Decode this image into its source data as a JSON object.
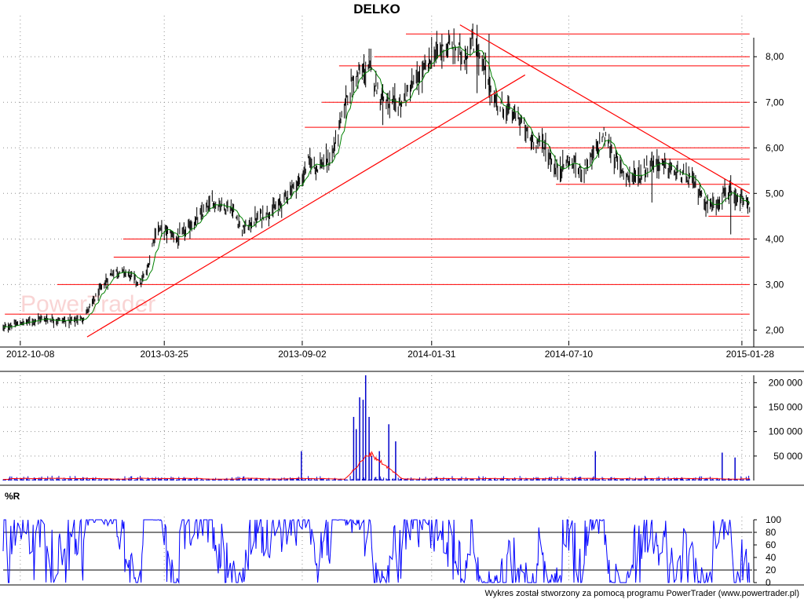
{
  "title": "DELKO",
  "footer": "Wykres został stworzony za pomocą programu PowerTrader (www.powertrader.pl)",
  "watermark": "PowerTrader",
  "colors": {
    "price_bars": "#000000",
    "moving_average": "#008000",
    "trend_lines": "#ff0000",
    "volume_bars": "#0000cc",
    "volume_average": "#ff0000",
    "williams_r": "#0000ff",
    "grid": "#909090"
  },
  "chart_data": [
    {
      "type": "line",
      "name": "price",
      "title": "DELKO",
      "x_ticks": [
        "2012-10-08",
        "2013-03-25",
        "2013-09-02",
        "2014-01-31",
        "2014-07-10",
        "2015-01-28"
      ],
      "y_ticks": [
        "2,00",
        "3,00",
        "4,00",
        "5,00",
        "6,00",
        "7,00",
        "8,00"
      ],
      "ylim": [
        1.8,
        8.9
      ],
      "x_range": [
        "2012-09-18",
        "2015-02-09"
      ],
      "grid": "dotted",
      "close_path": [
        [
          "2012-09-18",
          2.05
        ],
        [
          "2012-10-08",
          2.15
        ],
        [
          "2012-11-01",
          2.25
        ],
        [
          "2012-12-01",
          2.2
        ],
        [
          "2012-12-20",
          2.25
        ],
        [
          "2013-01-10",
          2.9
        ],
        [
          "2013-01-25",
          3.3
        ],
        [
          "2013-02-10",
          3.25
        ],
        [
          "2013-02-25",
          3.0
        ],
        [
          "2013-03-05",
          3.3
        ],
        [
          "2013-03-15",
          4.2
        ],
        [
          "2013-03-25",
          4.2
        ],
        [
          "2013-04-10",
          4.0
        ],
        [
          "2013-05-01",
          4.4
        ],
        [
          "2013-05-20",
          4.8
        ],
        [
          "2013-06-10",
          4.7
        ],
        [
          "2013-06-25",
          4.2
        ],
        [
          "2013-07-15",
          4.5
        ],
        [
          "2013-08-05",
          4.7
        ],
        [
          "2013-08-20",
          5.1
        ],
        [
          "2013-09-02",
          5.3
        ],
        [
          "2013-09-08",
          5.7
        ],
        [
          "2013-09-20",
          5.6
        ],
        [
          "2013-10-05",
          5.7
        ],
        [
          "2013-10-15",
          6.4
        ],
        [
          "2013-10-25",
          7.2
        ],
        [
          "2013-11-05",
          7.6
        ],
        [
          "2013-11-20",
          7.75
        ],
        [
          "2013-12-01",
          7.2
        ],
        [
          "2013-12-15",
          6.9
        ],
        [
          "2013-12-28",
          7.0
        ],
        [
          "2014-01-10",
          7.4
        ],
        [
          "2014-01-20",
          7.6
        ],
        [
          "2014-01-31",
          8.0
        ],
        [
          "2014-02-15",
          8.2
        ],
        [
          "2014-03-01",
          8.2
        ],
        [
          "2014-03-10",
          8.0
        ],
        [
          "2014-03-20",
          8.3
        ],
        [
          "2014-04-01",
          7.8
        ],
        [
          "2014-04-15",
          7.0
        ],
        [
          "2014-05-01",
          6.8
        ],
        [
          "2014-05-15",
          6.6
        ],
        [
          "2014-05-25",
          6.2
        ],
        [
          "2014-06-10",
          6.1
        ],
        [
          "2014-06-25",
          5.5
        ],
        [
          "2014-07-10",
          5.7
        ],
        [
          "2014-07-25",
          5.5
        ],
        [
          "2014-08-10",
          5.9
        ],
        [
          "2014-08-20",
          6.3
        ],
        [
          "2014-09-01",
          5.8
        ],
        [
          "2014-09-15",
          5.4
        ],
        [
          "2014-10-01",
          5.4
        ],
        [
          "2014-10-15",
          5.7
        ],
        [
          "2014-11-01",
          5.6
        ],
        [
          "2014-11-15",
          5.4
        ],
        [
          "2014-12-01",
          5.3
        ],
        [
          "2014-12-10",
          5.0
        ],
        [
          "2014-12-20",
          4.7
        ],
        [
          "2015-01-01",
          4.85
        ],
        [
          "2015-01-10",
          5.1
        ],
        [
          "2015-01-20",
          4.8
        ],
        [
          "2015-01-28",
          4.85
        ],
        [
          "2015-02-06",
          4.7
        ]
      ],
      "horizontal_levels": [
        {
          "price": 8.5,
          "from": "2014-01-01",
          "to": "2015-02-06"
        },
        {
          "price": 8.0,
          "from": "2013-11-25",
          "to": "2015-02-06"
        },
        {
          "price": 7.8,
          "from": "2013-10-15",
          "to": "2015-02-06"
        },
        {
          "price": 7.0,
          "from": "2013-09-25",
          "to": "2015-02-06"
        },
        {
          "price": 6.45,
          "from": "2013-09-05",
          "to": "2015-02-06"
        },
        {
          "price": 6.0,
          "from": "2014-05-10",
          "to": "2015-02-06"
        },
        {
          "price": 5.75,
          "from": "2014-10-25",
          "to": "2015-02-06"
        },
        {
          "price": 5.2,
          "from": "2014-06-25",
          "to": "2015-02-06"
        },
        {
          "price": 4.5,
          "from": "2014-12-20",
          "to": "2015-02-06"
        },
        {
          "price": 4.0,
          "from": "2013-02-05",
          "to": "2015-02-06"
        },
        {
          "price": 3.6,
          "from": "2013-01-25",
          "to": "2015-02-06"
        },
        {
          "price": 3.0,
          "from": "2012-11-20",
          "to": "2015-02-06"
        },
        {
          "price": 2.35,
          "from": "2012-09-20",
          "to": "2015-02-06"
        }
      ],
      "trend_lines": [
        {
          "from": [
            "2012-12-25",
            1.85
          ],
          "to": [
            "2014-05-20",
            7.6
          ]
        },
        {
          "from": [
            "2014-03-05",
            8.7
          ],
          "to": [
            "2015-02-06",
            5.0
          ]
        }
      ]
    },
    {
      "type": "bar",
      "name": "volume",
      "y_ticks": [
        "50 000",
        "100 000",
        "150 000",
        "200 000"
      ],
      "ylim": [
        0,
        215000
      ],
      "spikes": [
        [
          "2013-09-01",
          60000
        ],
        [
          "2013-11-01",
          130000
        ],
        [
          "2013-11-04",
          105000
        ],
        [
          "2013-11-08",
          170000
        ],
        [
          "2013-11-12",
          165000
        ],
        [
          "2013-11-15",
          215000
        ],
        [
          "2013-11-19",
          130000
        ],
        [
          "2013-11-22",
          50000
        ],
        [
          "2013-12-01",
          60000
        ],
        [
          "2013-12-12",
          115000
        ],
        [
          "2013-12-20",
          80000
        ],
        [
          "2014-08-10",
          60000
        ],
        [
          "2015-01-05",
          57000
        ],
        [
          "2015-01-20",
          47000
        ]
      ],
      "average_hump": {
        "from": "2013-10-20",
        "peak": [
          "2013-11-20",
          62000
        ],
        "to": "2013-12-30"
      }
    },
    {
      "type": "line",
      "name": "%R",
      "label": "%R",
      "y_ticks": [
        "0",
        "20",
        "40",
        "60",
        "80",
        "100"
      ],
      "ylim": [
        0,
        100
      ],
      "reference_levels": [
        20,
        80
      ]
    }
  ]
}
